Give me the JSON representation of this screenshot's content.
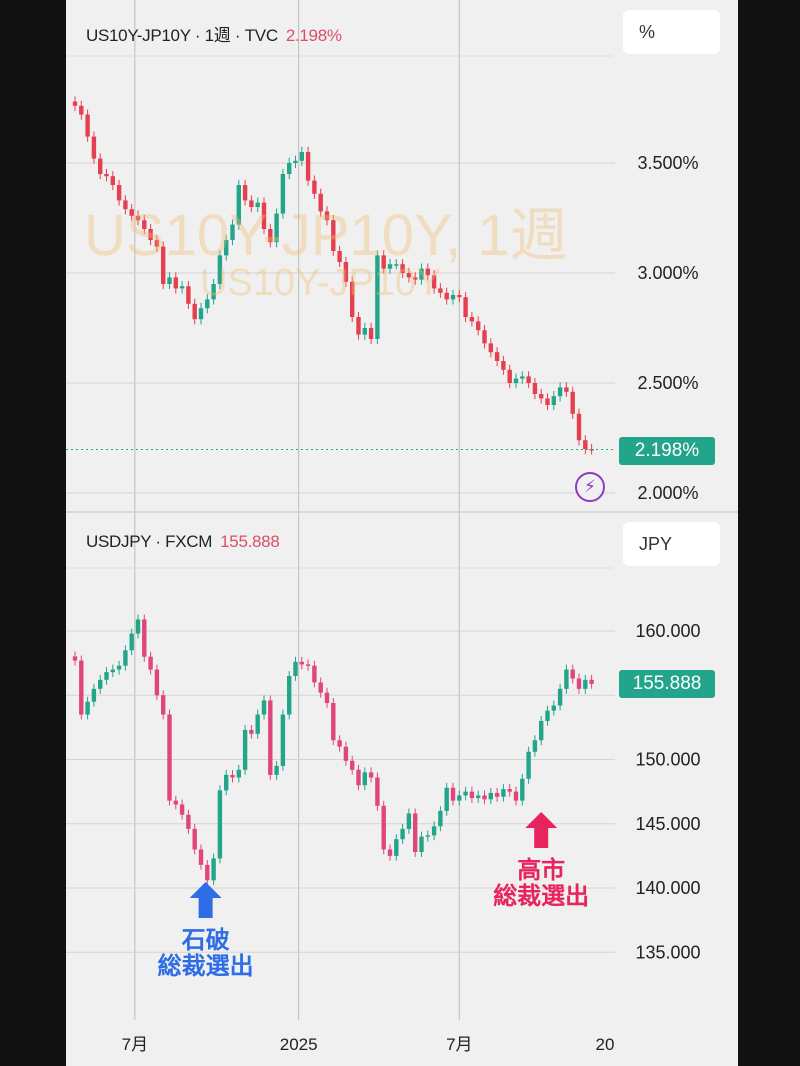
{
  "colors": {
    "up": "#22a58a",
    "down_top": "#e5404f",
    "down_bottom": "#e0457b",
    "grid": "#d4d4d4",
    "last_tag": "#22a58a",
    "annotation_blue": "#2f6de6",
    "annotation_pink": "#e8245e"
  },
  "chart_data": [
    {
      "type": "candlestick",
      "title": "US10Y-JP10Y · 1週 · TVC",
      "last_value": "2.198%",
      "unit_label": "%",
      "watermark": [
        "US10Y-JP10Y, 1週",
        "US10Y-JP10Y"
      ],
      "interval": "1週",
      "yticks": [
        "3.500%",
        "3.000%",
        "2.500%",
        "2.000%"
      ],
      "ytick_values": [
        3.5,
        3.0,
        2.5,
        2.0
      ],
      "ylim": [
        1.95,
        3.9
      ],
      "closes": [
        3.76,
        3.72,
        3.62,
        3.52,
        3.45,
        3.44,
        3.4,
        3.33,
        3.29,
        3.26,
        3.24,
        3.2,
        3.15,
        3.12,
        2.95,
        2.98,
        2.93,
        2.94,
        2.86,
        2.79,
        2.84,
        2.88,
        2.95,
        3.08,
        3.15,
        3.22,
        3.4,
        3.33,
        3.3,
        3.32,
        3.2,
        3.14,
        3.27,
        3.45,
        3.5,
        3.51,
        3.55,
        3.42,
        3.36,
        3.28,
        3.24,
        3.1,
        3.05,
        2.96,
        2.8,
        2.72,
        2.75,
        2.7,
        3.08,
        3.02,
        3.04,
        3.04,
        3.0,
        2.98,
        2.97,
        3.02,
        2.99,
        2.93,
        2.91,
        2.88,
        2.9,
        2.89,
        2.8,
        2.78,
        2.74,
        2.68,
        2.64,
        2.6,
        2.56,
        2.5,
        2.52,
        2.53,
        2.5,
        2.45,
        2.43,
        2.4,
        2.44,
        2.48,
        2.46,
        2.36,
        2.24,
        2.2,
        2.198
      ],
      "last_price_line": 2.198,
      "grid": true
    },
    {
      "type": "candlestick",
      "title": "USDJPY · FXCM",
      "last_value": "155.888",
      "unit_label": "JPY",
      "yticks": [
        "160.000",
        "150.000",
        "145.000",
        "140.000",
        "135.000"
      ],
      "ytick_values": [
        160,
        150,
        145,
        140,
        135
      ],
      "grid_values": [
        160,
        155,
        150,
        145,
        140,
        135
      ],
      "ylim": [
        131,
        163
      ],
      "closes": [
        157.7,
        153.5,
        154.5,
        155.5,
        156.2,
        156.8,
        157.0,
        157.3,
        158.5,
        159.8,
        160.9,
        158.0,
        157.0,
        155.0,
        153.5,
        146.8,
        146.5,
        145.7,
        144.6,
        143.0,
        141.8,
        140.6,
        142.3,
        147.6,
        148.8,
        148.6,
        149.2,
        152.3,
        152.0,
        153.5,
        154.6,
        148.8,
        149.5,
        153.5,
        156.5,
        157.6,
        157.4,
        157.3,
        156.0,
        155.2,
        154.4,
        151.5,
        151.0,
        149.9,
        149.2,
        148.0,
        149.0,
        148.6,
        146.4,
        143.0,
        142.5,
        143.8,
        144.6,
        145.8,
        142.8,
        144.0,
        144.1,
        144.8,
        146.0,
        147.8,
        146.8,
        147.2,
        147.5,
        147.0,
        147.2,
        146.9,
        147.4,
        147.1,
        147.7,
        147.5,
        146.8,
        148.5,
        150.6,
        151.5,
        153.0,
        153.8,
        154.2,
        155.5,
        157.0,
        156.3,
        155.5,
        156.2,
        155.888
      ],
      "annotations": [
        {
          "label_line1": "石破",
          "label_line2": "総裁選出",
          "index": 22,
          "color": "blue"
        },
        {
          "label_line1": "高市",
          "label_line2": "総裁選出",
          "index": 74,
          "color": "pink"
        }
      ],
      "grid": true
    }
  ],
  "time_axis": {
    "labels": [
      "7月",
      "2025",
      "7月",
      "20"
    ],
    "label_week_index": [
      9.5,
      35.5,
      61,
      84
    ]
  },
  "icons": {
    "alert": "lightning-bolt-icon"
  }
}
